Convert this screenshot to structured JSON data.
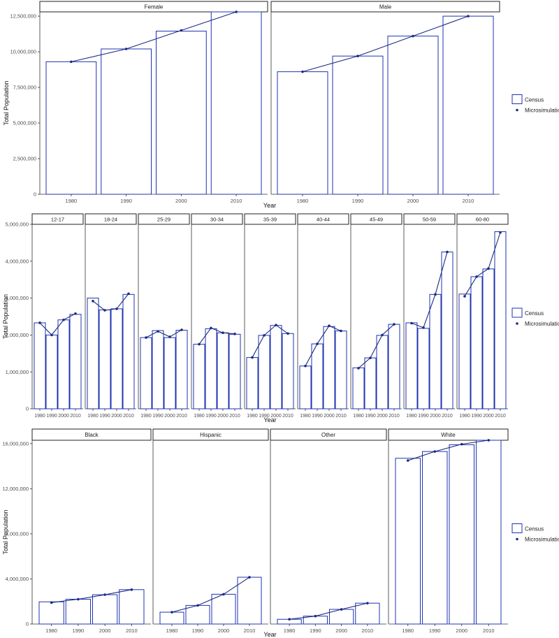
{
  "legend": {
    "census_label": "Census",
    "micro_label": "Microsimulation"
  },
  "colors": {
    "bar_stroke": "#1f33b0",
    "line": "#1b2a80",
    "point": "#1b2a80",
    "axis": "#333333",
    "text": "#4d4d4d",
    "strip_border": "#222222"
  },
  "chart_data": [
    {
      "type": "bar",
      "xlabel": "Year",
      "ylabel": "Total Population",
      "ylim": [
        0,
        12800000
      ],
      "y_ticks": [
        0,
        2500000,
        5000000,
        7500000,
        10000000,
        12500000
      ],
      "y_tick_labels": [
        "0",
        "2,500,000",
        "5,000,000",
        "7,500,000",
        "10,000,000",
        "12,500,000"
      ],
      "x": [
        "1980",
        "1990",
        "2000",
        "2010"
      ],
      "panels": [
        {
          "name": "Female",
          "census": [
            9300000,
            10200000,
            11450000,
            12800000
          ],
          "microsimulation": [
            9300000,
            10200000,
            11500000,
            12800000
          ]
        },
        {
          "name": "Male",
          "census": [
            8600000,
            9700000,
            11100000,
            12500000
          ],
          "microsimulation": [
            8600000,
            9700000,
            11100000,
            12500000
          ]
        }
      ],
      "legend": [
        "Census",
        "Microsimulation"
      ],
      "grid": false
    },
    {
      "type": "bar",
      "xlabel": "Year",
      "ylabel": "Total Population",
      "ylim": [
        0,
        5000000
      ],
      "y_ticks": [
        0,
        1000000,
        2000000,
        3000000,
        4000000,
        5000000
      ],
      "y_tick_labels": [
        "0",
        "1,000,000",
        "2,000,000",
        "3,000,000",
        "4,000,000",
        "5,000,000"
      ],
      "x": [
        "1980",
        "1990",
        "2000",
        "2010"
      ],
      "panels": [
        {
          "name": "12-17",
          "census": [
            2330000,
            2000000,
            2410000,
            2560000
          ],
          "microsimulation": [
            2330000,
            2000000,
            2410000,
            2580000
          ]
        },
        {
          "name": "18-24",
          "census": [
            3000000,
            2680000,
            2710000,
            3100000
          ],
          "microsimulation": [
            2920000,
            2670000,
            2710000,
            3120000
          ]
        },
        {
          "name": "25-29",
          "census": [
            1930000,
            2120000,
            1930000,
            2130000
          ],
          "microsimulation": [
            1930000,
            2100000,
            1950000,
            2140000
          ]
        },
        {
          "name": "30-34",
          "census": [
            1750000,
            2170000,
            2060000,
            2020000
          ],
          "microsimulation": [
            1750000,
            2190000,
            2060000,
            2030000
          ]
        },
        {
          "name": "35-39",
          "census": [
            1390000,
            1990000,
            2260000,
            2040000
          ],
          "microsimulation": [
            1390000,
            1990000,
            2270000,
            2040000
          ]
        },
        {
          "name": "40-44",
          "census": [
            1160000,
            1760000,
            2230000,
            2110000
          ],
          "microsimulation": [
            1160000,
            1760000,
            2250000,
            2110000
          ]
        },
        {
          "name": "45-49",
          "census": [
            1110000,
            1380000,
            1990000,
            2290000
          ],
          "microsimulation": [
            1100000,
            1380000,
            2000000,
            2290000
          ]
        },
        {
          "name": "50-59",
          "census": [
            2330000,
            2180000,
            3100000,
            4250000
          ],
          "microsimulation": [
            2320000,
            2200000,
            3100000,
            4250000
          ]
        },
        {
          "name": "60-80",
          "census": [
            3110000,
            3580000,
            3790000,
            4800000
          ],
          "microsimulation": [
            3050000,
            3580000,
            3800000,
            4780000
          ]
        }
      ],
      "legend": [
        "Census",
        "Microsimulation"
      ],
      "grid": false
    },
    {
      "type": "bar",
      "xlabel": "Year",
      "ylabel": "Total Population",
      "ylim": [
        0,
        16300000
      ],
      "y_ticks": [
        0,
        4000000,
        8000000,
        12000000,
        16000000
      ],
      "y_tick_labels": [
        "0",
        "4,000,000",
        "8,000,000",
        "12,000,000",
        "16,000,000"
      ],
      "x": [
        "1980",
        "1990",
        "2000",
        "2010"
      ],
      "panels": [
        {
          "name": "Black",
          "census": [
            1970000,
            2200000,
            2600000,
            3050000
          ],
          "microsimulation": [
            1900000,
            2200000,
            2600000,
            3050000
          ]
        },
        {
          "name": "Hispanic",
          "census": [
            1050000,
            1650000,
            2640000,
            4150000
          ],
          "microsimulation": [
            1050000,
            1650000,
            2640000,
            4150000
          ]
        },
        {
          "name": "Other",
          "census": [
            420000,
            700000,
            1300000,
            1850000
          ],
          "microsimulation": [
            420000,
            700000,
            1300000,
            1850000
          ]
        },
        {
          "name": "White",
          "census": [
            14700000,
            15300000,
            15900000,
            16300000
          ],
          "microsimulation": [
            14500000,
            15300000,
            15950000,
            16300000
          ]
        }
      ],
      "legend": [
        "Census",
        "Microsimulation"
      ],
      "grid": false
    }
  ]
}
